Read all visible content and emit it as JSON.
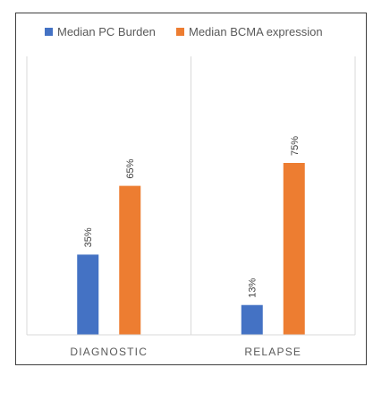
{
  "chart_data": {
    "type": "bar",
    "categories": [
      "DIAGNOSTIC",
      "RELAPSE"
    ],
    "series": [
      {
        "name": "Median PC Burden",
        "color": "#4472C4",
        "values": [
          35,
          13
        ],
        "labels": [
          "35%",
          "13%"
        ]
      },
      {
        "name": "Median BCMA expression",
        "color": "#ED7D31",
        "values": [
          65,
          75
        ],
        "labels": [
          "65%",
          "75%"
        ]
      }
    ],
    "title": "",
    "xlabel": "",
    "ylabel": "",
    "ylim": [
      0,
      100
    ],
    "legend_position": "top",
    "grid": false,
    "colors": {
      "frame": "#404040",
      "axis": "#D9D9D9",
      "text": "#595959",
      "label_text": "#404040"
    }
  }
}
